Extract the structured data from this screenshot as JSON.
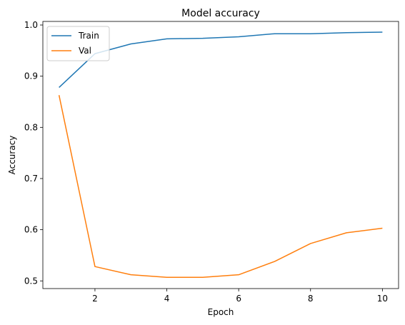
{
  "chart_data": {
    "type": "line",
    "title": "Model accuracy",
    "xlabel": "Epoch",
    "ylabel": "Accuracy",
    "x": [
      1,
      2,
      3,
      4,
      5,
      6,
      7,
      8,
      9,
      10
    ],
    "xlim": [
      0.55,
      10.45
    ],
    "ylim": [
      0.485,
      1.007
    ],
    "xticks": [
      2,
      4,
      6,
      8,
      10
    ],
    "yticks": [
      0.5,
      0.6,
      0.7,
      0.8,
      0.9,
      1.0
    ],
    "ytick_labels": [
      "0.5",
      "0.6",
      "0.7",
      "0.8",
      "0.9",
      "1.0"
    ],
    "grid": false,
    "legend_position": "top-left",
    "series": [
      {
        "name": "Train",
        "color": "#1f77b4",
        "values": [
          0.878,
          0.944,
          0.963,
          0.973,
          0.974,
          0.977,
          0.983,
          0.983,
          0.985,
          0.986
        ]
      },
      {
        "name": "Val",
        "color": "#ff7f0e",
        "values": [
          0.863,
          0.528,
          0.512,
          0.507,
          0.507,
          0.512,
          0.538,
          0.573,
          0.594,
          0.603
        ]
      }
    ]
  }
}
